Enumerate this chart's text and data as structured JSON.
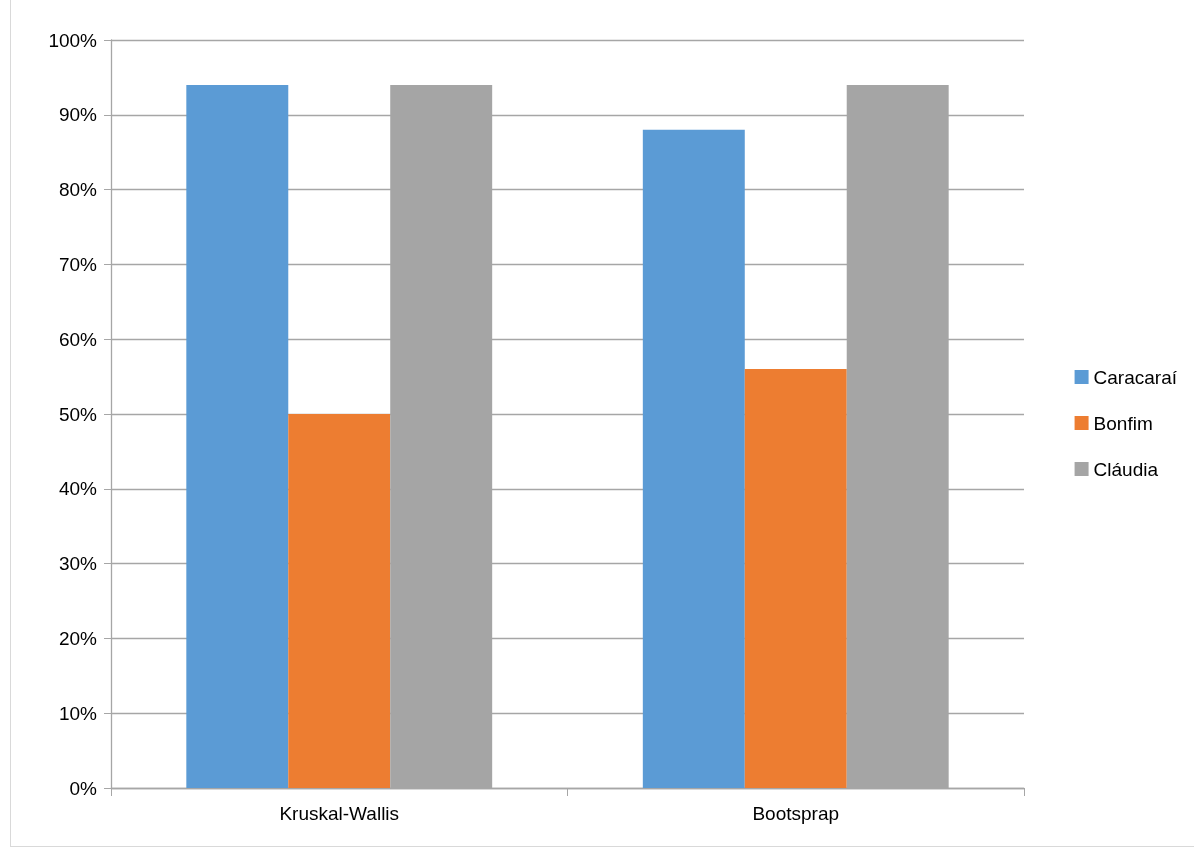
{
  "chart_data": {
    "type": "bar",
    "categories": [
      "Kruskal-Wallis",
      "Bootsprap"
    ],
    "series": [
      {
        "name": "Caracaraí",
        "color": "#5b9bd5",
        "values": [
          94,
          88
        ]
      },
      {
        "name": "Bonfim",
        "color": "#ed7d31",
        "values": [
          50,
          56
        ]
      },
      {
        "name": "Cláudia",
        "color": "#a5a5a5",
        "values": [
          94,
          94
        ]
      }
    ],
    "ylim": [
      0,
      100
    ],
    "yticks": [
      {
        "value": 0,
        "label": "0%"
      },
      {
        "value": 10,
        "label": "10%"
      },
      {
        "value": 20,
        "label": "20%"
      },
      {
        "value": 30,
        "label": "30%"
      },
      {
        "value": 40,
        "label": "40%"
      },
      {
        "value": 50,
        "label": "50%"
      },
      {
        "value": 60,
        "label": "60%"
      },
      {
        "value": 70,
        "label": "70%"
      },
      {
        "value": 80,
        "label": "80%"
      },
      {
        "value": 90,
        "label": "90%"
      },
      {
        "value": 100,
        "label": "100%"
      }
    ],
    "grid": "y",
    "legend": "right"
  }
}
